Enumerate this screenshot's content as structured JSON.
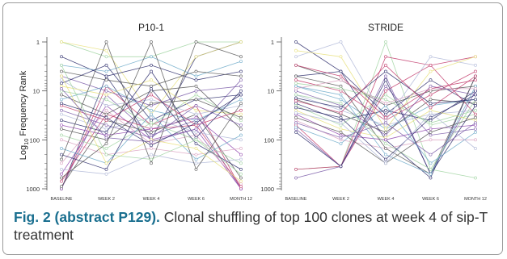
{
  "caption": {
    "label": "Fig. 2 (abstract P129).",
    "text": "Clonal shuffling of top 100 clones at week 4 of sip-T treatment"
  },
  "colors": {
    "palette": [
      "#2b2b6b",
      "#7a5aa8",
      "#c23a6b",
      "#9fd3a0",
      "#e8e07a",
      "#b0b8d8",
      "#555555",
      "#6aa8c8",
      "#d9a0c0",
      "#8e44ad"
    ],
    "axis": "#555555",
    "caption_label": "#1a6f8f"
  },
  "chart_data": [
    {
      "type": "line",
      "title": "P10-1",
      "ylabel": "Log10 Frequency Rank",
      "ylabel_main": "Log",
      "ylabel_sub": "10",
      "ylabel_rest": " Frequency Rank",
      "y_scale": "log",
      "y_inverted": true,
      "ylim": [
        1,
        1000
      ],
      "yticks": [
        1,
        10,
        100,
        1000
      ],
      "ytick_labels": [
        "1",
        "10",
        "100",
        "1000"
      ],
      "categories": [
        "BASELINE",
        "WEEK 2",
        "WEEK 4",
        "WEEK 6",
        "MONTH 12"
      ],
      "series": [
        {
          "values": [
            1000,
            5,
            100,
            2,
            1
          ],
          "color": "#2b2b6b"
        },
        {
          "values": [
            1000,
            8,
            50,
            20,
            1000
          ],
          "color": "#c23a6b"
        },
        {
          "values": [
            1000,
            12,
            80,
            40,
            1000
          ],
          "color": "#7a5aa8"
        },
        {
          "values": [
            500,
            20,
            100,
            60,
            1000
          ],
          "color": "#8e44ad"
        },
        {
          "values": [
            300,
            25,
            120,
            80,
            800
          ],
          "color": "#d9a0c0"
        },
        {
          "values": [
            700,
            30,
            60,
            50,
            900
          ],
          "color": "#c23a6b"
        },
        {
          "values": [
            900,
            40,
            70,
            30,
            600
          ],
          "color": "#555555"
        },
        {
          "values": [
            1,
            2,
            2,
            1,
            1
          ],
          "color": "#9fd3a0"
        },
        {
          "values": [
            1,
            1.5,
            30,
            2,
            1
          ],
          "color": "#e8e07a"
        },
        {
          "values": [
            2,
            5,
            3,
            6,
            4
          ],
          "color": "#2b2b6b"
        },
        {
          "values": [
            3,
            4,
            2,
            5,
            2.5
          ],
          "color": "#6aa8c8"
        },
        {
          "values": [
            4,
            6,
            8,
            4,
            5
          ],
          "color": "#555555"
        },
        {
          "values": [
            5,
            10,
            20,
            10,
            8
          ],
          "color": "#7a5aa8"
        },
        {
          "values": [
            6,
            20,
            15,
            30,
            20
          ],
          "color": "#b0b8d8"
        },
        {
          "values": [
            7,
            3,
            40,
            15,
            12
          ],
          "color": "#2b2b6b"
        },
        {
          "values": [
            8,
            12,
            6,
            25,
            30
          ],
          "color": "#e8e07a"
        },
        {
          "values": [
            10,
            15,
            50,
            12,
            40
          ],
          "color": "#9fd3a0"
        },
        {
          "values": [
            12,
            30,
            10,
            8,
            60
          ],
          "color": "#555555"
        },
        {
          "values": [
            15,
            8,
            25,
            40,
            15
          ],
          "color": "#6aa8c8"
        },
        {
          "values": [
            20,
            40,
            12,
            50,
            25
          ],
          "color": "#c23a6b"
        },
        {
          "values": [
            25,
            50,
            90,
            20,
            50
          ],
          "color": "#7a5aa8"
        },
        {
          "values": [
            30,
            60,
            35,
            70,
            100
          ],
          "color": "#b0b8d8"
        },
        {
          "values": [
            40,
            70,
            4,
            90,
            10
          ],
          "color": "#2b2b6b"
        },
        {
          "values": [
            50,
            80,
            60,
            35,
            200
          ],
          "color": "#8e44ad"
        },
        {
          "values": [
            60,
            100,
            18,
            15,
            35
          ],
          "color": "#555555"
        },
        {
          "values": [
            80,
            150,
            45,
            100,
            300
          ],
          "color": "#9fd3a0"
        },
        {
          "values": [
            100,
            200,
            150,
            200,
            150
          ],
          "color": "#d9a0c0"
        },
        {
          "values": [
            150,
            300,
            30,
            250,
            80
          ],
          "color": "#6aa8c8"
        },
        {
          "values": [
            200,
            400,
            9,
            120,
            400
          ],
          "color": "#2b2b6b"
        },
        {
          "values": [
            250,
            1,
            300,
            1,
            2
          ],
          "color": "#555555"
        },
        {
          "values": [
            400,
            500,
            200,
            300,
            250
          ],
          "color": "#b0b8d8"
        },
        {
          "values": [
            600,
            120,
            1,
            400,
            18
          ],
          "color": "#555555"
        },
        {
          "values": [
            5,
            300,
            100,
            150,
            700
          ],
          "color": "#e8e07a"
        },
        {
          "values": [
            3,
            200,
            250,
            100,
            500
          ],
          "color": "#9fd3a0"
        },
        {
          "values": [
            9,
            90,
            110,
            60,
            6
          ],
          "color": "#7a5aa8"
        },
        {
          "values": [
            18,
            35,
            130,
            45,
            12
          ],
          "color": "#2b2b6b"
        }
      ]
    },
    {
      "type": "line",
      "title": "STRIDE",
      "y_scale": "log",
      "y_inverted": true,
      "ylim": [
        1,
        1000
      ],
      "yticks": [
        1,
        10,
        100,
        1000
      ],
      "ytick_labels": [
        "1",
        "10",
        "100",
        "1000"
      ],
      "categories": [
        "BASELINE",
        "WEEK 2",
        "WEEK 4",
        "WEEK 6",
        "MONTH 12"
      ],
      "series": [
        {
          "values": [
            1,
            4,
            100,
            600,
            5
          ],
          "color": "#2b2b6b"
        },
        {
          "values": [
            400,
            350,
            1,
            400,
            600
          ],
          "color": "#9fd3a0"
        },
        {
          "values": [
            400,
            350,
            2,
            3,
            2
          ],
          "color": "#c23a6b"
        },
        {
          "values": [
            600,
            350,
            5,
            500,
            10
          ],
          "color": "#7a5aa8"
        },
        {
          "values": [
            3,
            6,
            20,
            10,
            8
          ],
          "color": "#555555"
        },
        {
          "values": [
            5,
            4,
            30,
            6,
            20
          ],
          "color": "#2b2b6b"
        },
        {
          "values": [
            6,
            10,
            40,
            12,
            4
          ],
          "color": "#c23a6b"
        },
        {
          "values": [
            8,
            15,
            60,
            20,
            15
          ],
          "color": "#6aa8c8"
        },
        {
          "values": [
            10,
            20,
            80,
            8,
            12
          ],
          "color": "#7a5aa8"
        },
        {
          "values": [
            12,
            25,
            50,
            30,
            25
          ],
          "color": "#b0b8d8"
        },
        {
          "values": [
            15,
            30,
            70,
            15,
            18
          ],
          "color": "#555555"
        },
        {
          "values": [
            18,
            40,
            25,
            40,
            10
          ],
          "color": "#2b2b6b"
        },
        {
          "values": [
            20,
            50,
            12,
            50,
            30
          ],
          "color": "#9fd3a0"
        },
        {
          "values": [
            25,
            60,
            90,
            25,
            40
          ],
          "color": "#e8e07a"
        },
        {
          "values": [
            30,
            80,
            100,
            60,
            50
          ],
          "color": "#8e44ad"
        },
        {
          "values": [
            40,
            100,
            150,
            100,
            100
          ],
          "color": "#d9a0c0"
        },
        {
          "values": [
            50,
            350,
            10,
            3,
            30
          ],
          "color": "#c23a6b"
        },
        {
          "values": [
            60,
            350,
            8,
            80,
            60
          ],
          "color": "#7a5aa8"
        },
        {
          "values": [
            70,
            350,
            6,
            500,
            20
          ],
          "color": "#2b2b6b"
        },
        {
          "values": [
            5,
            8,
            150,
            500,
            5
          ],
          "color": "#555555"
        },
        {
          "values": [
            8,
            12,
            200,
            500,
            8
          ],
          "color": "#6aa8c8"
        },
        {
          "values": [
            12,
            18,
            120,
            400,
            15
          ],
          "color": "#9fd3a0"
        },
        {
          "values": [
            2,
            1,
            40,
            2,
            3
          ],
          "color": "#b0b8d8"
        },
        {
          "values": [
            1.5,
            2,
            60,
            4,
            2
          ],
          "color": "#e8e07a"
        },
        {
          "values": [
            3,
            5,
            35,
            9,
            6
          ],
          "color": "#c23a6b"
        },
        {
          "values": [
            22,
            35,
            250,
            35,
            12
          ],
          "color": "#2b2b6b"
        },
        {
          "values": [
            35,
            70,
            300,
            70,
            35
          ],
          "color": "#555555"
        },
        {
          "values": [
            45,
            90,
            45,
            200,
            45
          ],
          "color": "#7a5aa8"
        },
        {
          "values": [
            55,
            120,
            20,
            300,
            70
          ],
          "color": "#6aa8c8"
        },
        {
          "values": [
            7,
            9,
            15,
            45,
            25
          ],
          "color": "#9fd3a0"
        },
        {
          "values": [
            9,
            6,
            18,
            9,
            9
          ],
          "color": "#d9a0c0"
        },
        {
          "values": [
            14,
            22,
            4,
            18,
            15
          ],
          "color": "#2b2b6b"
        },
        {
          "values": [
            16,
            28,
            3,
            22,
            5
          ],
          "color": "#c23a6b"
        },
        {
          "values": [
            28,
            45,
            300,
            28,
            150
          ],
          "color": "#b0b8d8"
        }
      ]
    }
  ]
}
